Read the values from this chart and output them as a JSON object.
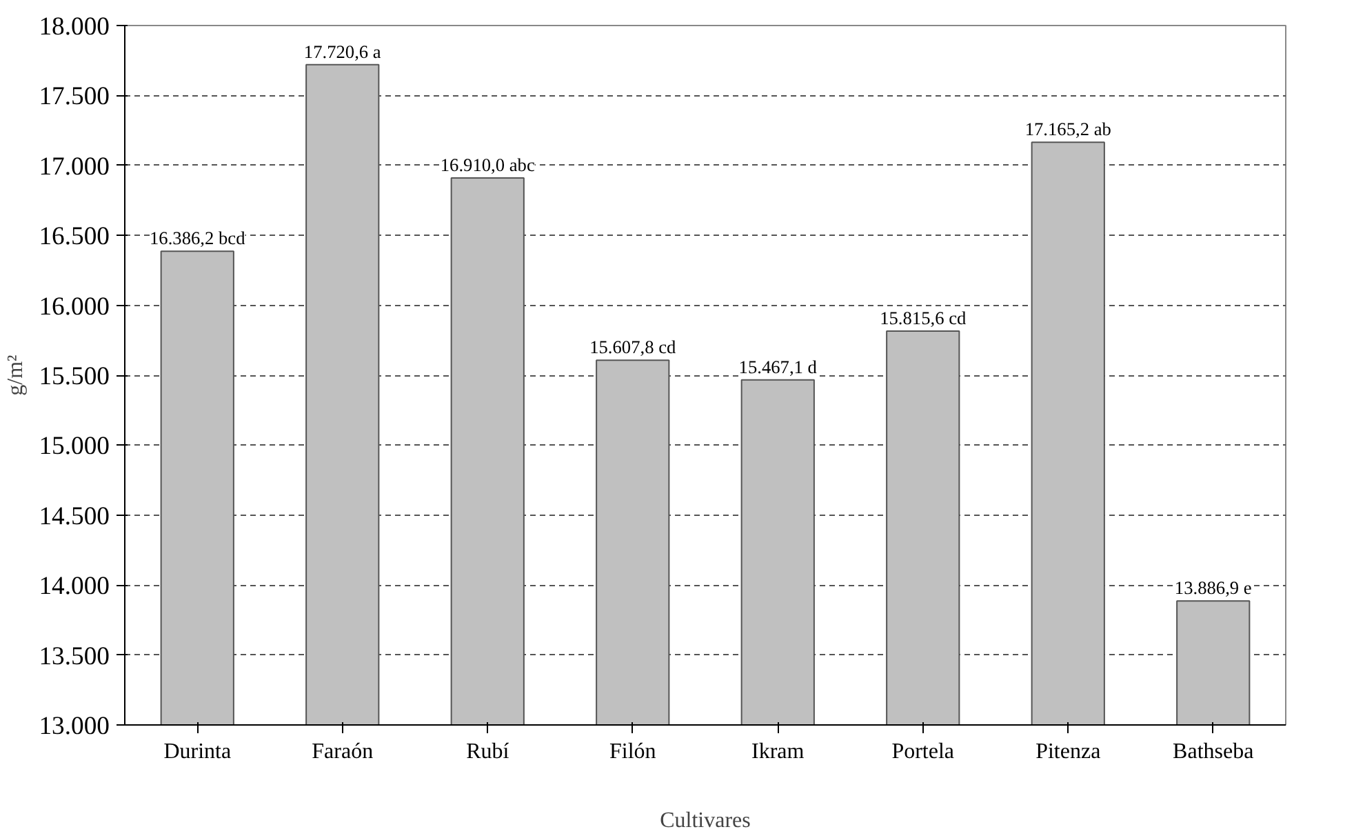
{
  "chart_data": {
    "type": "bar",
    "xlabel": "Cultivares",
    "ylabel": "g/m²",
    "categories": [
      "Durinta",
      "Faraón",
      "Rubí",
      "Filón",
      "Ikram",
      "Portela",
      "Pitenza",
      "Bathseba"
    ],
    "values": [
      16386.2,
      17720.6,
      16910.0,
      15607.8,
      15467.1,
      15815.6,
      17165.2,
      13886.9
    ],
    "value_labels": [
      "16.386,2 bcd",
      "17.720,6 a",
      "16.910,0 abc",
      "15.607,8 cd",
      "15.467,1 d",
      "15.815,6 cd",
      "17.165,2 ab",
      "13.886,9 e"
    ],
    "color": "#c0c0c0",
    "ylim": [
      13000,
      18000
    ],
    "yticks": [
      {
        "value": 13000,
        "label": "13.000"
      },
      {
        "value": 13500,
        "label": "13.500"
      },
      {
        "value": 14000,
        "label": "14.000"
      },
      {
        "value": 14500,
        "label": "14.500"
      },
      {
        "value": 15000,
        "label": "15.000"
      },
      {
        "value": 15500,
        "label": "15.500"
      },
      {
        "value": 16000,
        "label": "16.000"
      },
      {
        "value": 16500,
        "label": "16.500"
      },
      {
        "value": 17000,
        "label": "17.000"
      },
      {
        "value": 17500,
        "label": "17.500"
      },
      {
        "value": 18000,
        "label": "18.000"
      }
    ],
    "grid": "y"
  }
}
